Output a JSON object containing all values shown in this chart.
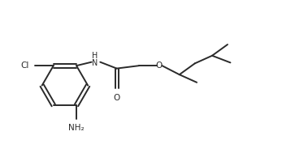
{
  "bg_color": "#ffffff",
  "line_color": "#2a2a2a",
  "text_color": "#2a2a2a",
  "lw": 1.4,
  "font_size": 7.5,
  "xlim": [
    0,
    10.5
  ],
  "ylim": [
    0,
    5.5
  ]
}
